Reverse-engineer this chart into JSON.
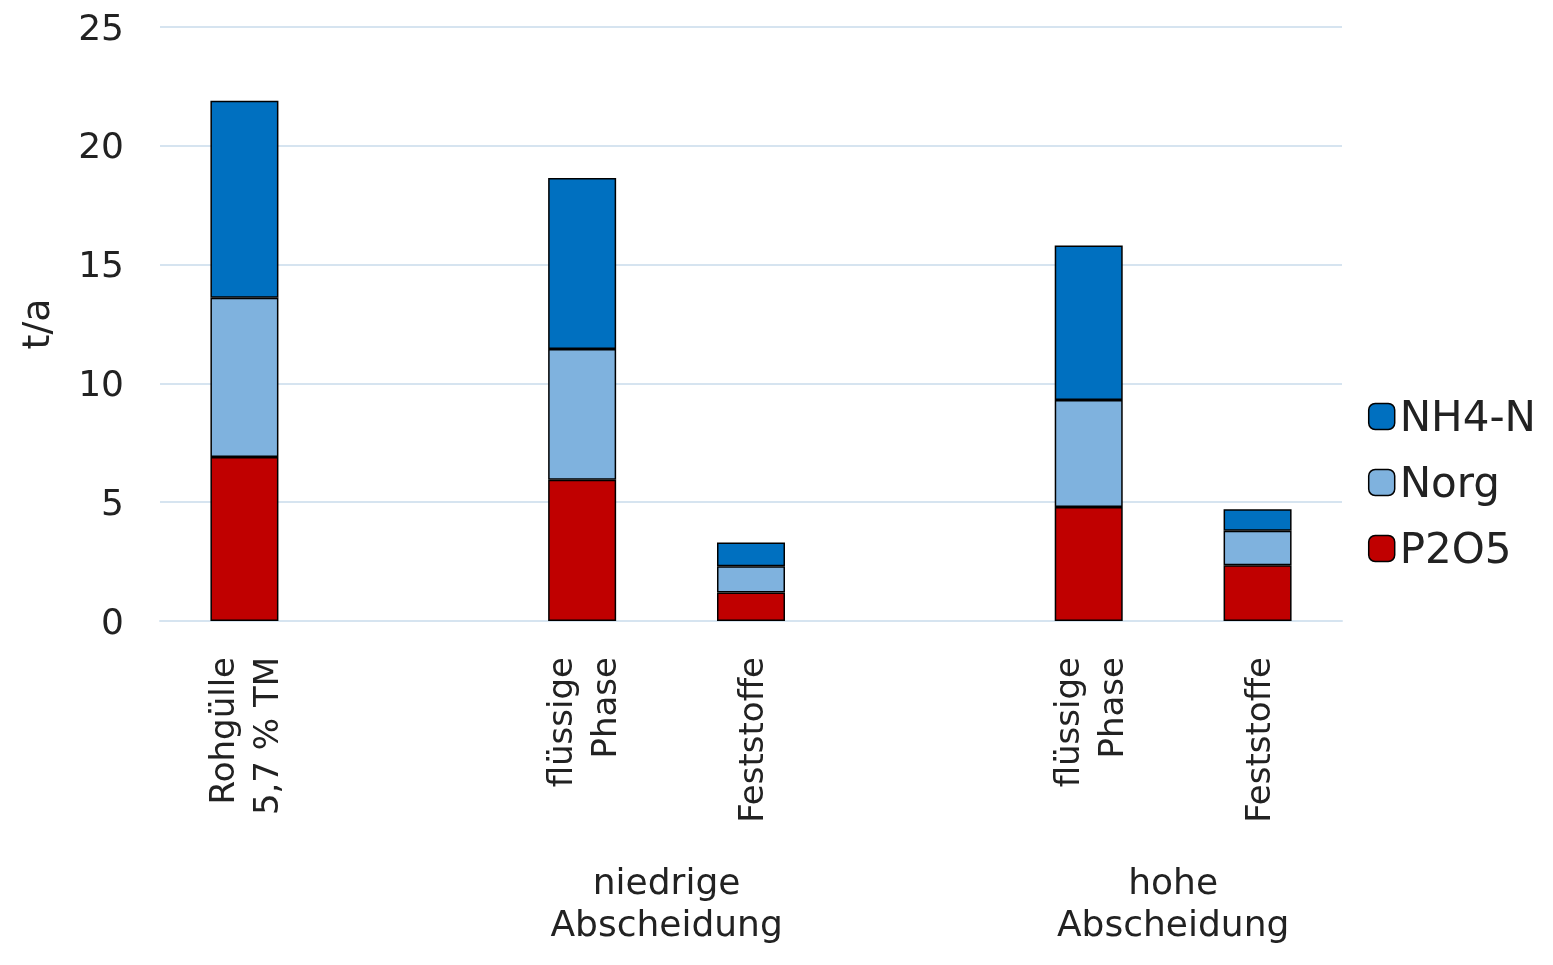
{
  "chart_data": {
    "type": "bar",
    "stacked": true,
    "ylabel": "t/a",
    "categories": [
      "Rohgülle\n5,7 % TM",
      null,
      "flüssige\nPhase",
      "Feststoffe",
      null,
      "flüssige\nPhase",
      "Feststoffe"
    ],
    "series": [
      {
        "name": "P2O5",
        "color": "#c00000",
        "values": [
          6.9,
          null,
          5.95,
          1.2,
          null,
          4.8,
          2.35
        ]
      },
      {
        "name": "Norg",
        "color": "#7fb2de",
        "values": [
          6.7,
          null,
          5.5,
          1.1,
          null,
          4.5,
          1.45
        ]
      },
      {
        "name": "NH4-N",
        "color": "#0070c0",
        "values": [
          8.3,
          null,
          7.2,
          1.0,
          null,
          6.5,
          0.9
        ]
      }
    ],
    "ylim": [
      0,
      25
    ],
    "yticks": [
      0,
      5,
      10,
      15,
      20,
      25
    ],
    "grid": "y",
    "legend": "right",
    "annotations": [
      "niedrige\nAbscheidung",
      "hohe\nAbscheidung"
    ]
  }
}
